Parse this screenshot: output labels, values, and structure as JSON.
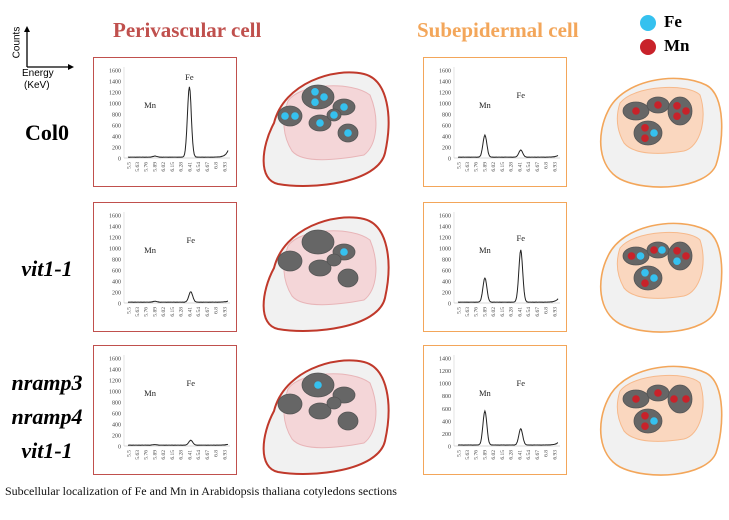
{
  "headers": {
    "perivascular": "Perivascular cell",
    "subepidermal": "Subepidermal cell"
  },
  "axis_key": {
    "y": "Counts",
    "x": "Energy",
    "x_unit": "(KeV)"
  },
  "legend": [
    {
      "label": "Fe",
      "color": "#35c1ef"
    },
    {
      "label": "Mn",
      "color": "#c8222a"
    }
  ],
  "colors": {
    "perivascular": "#c0392b",
    "subepidermal": "#f3a65a",
    "peri_inner": "#f4d6d8",
    "sub_inner": "#fad7bf",
    "organelle": "#666666",
    "cell_fill": "#f1f1f1"
  },
  "rows": [
    {
      "label_lines": [
        "Col0"
      ]
    },
    {
      "label_lines": [
        "vit1-1"
      ]
    },
    {
      "label_lines": [
        "nramp3",
        "nramp4",
        "vit1-1"
      ]
    }
  ],
  "caption": "Subcellular localization of Fe and Mn in Arabidopsis thaliana cotyledons sections",
  "cells": [
    {
      "type": "perivascular",
      "organelles": [
        [
          "Fe",
          "Fe"
        ],
        [
          "Fe",
          "Fe",
          "Fe"
        ],
        [
          "Fe"
        ],
        [
          "Fe"
        ],
        [
          "Fe"
        ],
        [
          "Fe"
        ]
      ]
    },
    {
      "type": "subepidermal",
      "organelles": [
        [
          "Mn"
        ],
        [
          "Mn"
        ],
        [
          "Mn",
          "Mn",
          "Mn"
        ],
        [
          "Fe",
          "Mn",
          "Mn"
        ]
      ]
    },
    {
      "type": "perivascular",
      "organelles": [
        [],
        [],
        [
          "Fe"
        ],
        [],
        [],
        []
      ]
    },
    {
      "type": "subepidermal",
      "organelles": [
        [
          "Fe",
          "Mn"
        ],
        [
          "Fe",
          "Mn"
        ],
        [
          "Mn",
          "Fe",
          "Mn"
        ],
        [
          "Fe",
          "Mn",
          "Fe"
        ]
      ]
    },
    {
      "type": "perivascular",
      "organelles": [
        [],
        [
          "Fe"
        ],
        [],
        [],
        [],
        []
      ]
    },
    {
      "type": "subepidermal",
      "organelles": [
        [
          "Mn"
        ],
        [
          "Mn"
        ],
        [
          "Mn",
          "Mn"
        ],
        [
          "Fe",
          "Mn",
          "Mn"
        ]
      ]
    }
  ],
  "chart_data": [
    {
      "type": "line",
      "panel": "Col0 perivascular",
      "xlabel": "Energy (KeV)",
      "ylabel": "Counts",
      "x_ticks": [
        "5.5",
        "5.63",
        "5.76",
        "5.89",
        "6.02",
        "6.15",
        "6.28",
        "6.41",
        "6.54",
        "6.67",
        "6.8",
        "6.93"
      ],
      "ylim": [
        0,
        1600
      ],
      "y_ticks": [
        "0",
        "200",
        "400",
        "600",
        "800",
        "1000",
        "1200",
        "1400",
        "1600"
      ],
      "peaks": {
        "Mn": {
          "x": 5.89,
          "y": 20
        },
        "Fe": {
          "x": 6.39,
          "y": 1280
        }
      },
      "tail": 120,
      "labels": {
        "Mn": "Mn",
        "Fe": "Fe"
      }
    },
    {
      "type": "line",
      "panel": "Col0 subepidermal",
      "xlabel": "Energy (KeV)",
      "ylabel": "Counts",
      "x_ticks": [
        "5.5",
        "5.63",
        "5.76",
        "5.89",
        "6.02",
        "6.15",
        "6.28",
        "6.41",
        "6.54",
        "6.67",
        "6.8",
        "6.93"
      ],
      "ylim": [
        0,
        1600
      ],
      "y_ticks": [
        "0",
        "200",
        "400",
        "600",
        "800",
        "1000",
        "1200",
        "1400",
        "1600"
      ],
      "peaks": {
        "Mn": {
          "x": 5.89,
          "y": 400
        },
        "Fe": {
          "x": 6.41,
          "y": 130
        }
      },
      "tail": 30,
      "labels": {
        "Mn": "Mn",
        "Fe": "Fe"
      }
    },
    {
      "type": "line",
      "panel": "vit1-1 perivascular",
      "xlabel": "Energy (KeV)",
      "ylabel": "Counts",
      "x_ticks": [
        "5.5",
        "5.63",
        "5.76",
        "5.89",
        "6.02",
        "6.15",
        "6.28",
        "6.41",
        "6.54",
        "6.67",
        "6.8",
        "6.93"
      ],
      "ylim": [
        0,
        1600
      ],
      "y_ticks": [
        "0",
        "200",
        "400",
        "600",
        "800",
        "1000",
        "1200",
        "1400",
        "1600"
      ],
      "peaks": {
        "Mn": {
          "x": 5.89,
          "y": 15
        },
        "Fe": {
          "x": 6.41,
          "y": 190
        }
      },
      "tail": 20,
      "labels": {
        "Mn": "Mn",
        "Fe": "Fe"
      }
    },
    {
      "type": "line",
      "panel": "vit1-1 subepidermal",
      "xlabel": "Energy (KeV)",
      "ylabel": "Counts",
      "x_ticks": [
        "5.5",
        "5.63",
        "5.76",
        "5.89",
        "6.02",
        "6.15",
        "6.28",
        "6.41",
        "6.54",
        "6.67",
        "6.8",
        "6.93"
      ],
      "ylim": [
        0,
        1600
      ],
      "y_ticks": [
        "0",
        "200",
        "400",
        "600",
        "800",
        "1000",
        "1200",
        "1400",
        "1600"
      ],
      "peaks": {
        "Mn": {
          "x": 5.89,
          "y": 440
        },
        "Fe": {
          "x": 6.41,
          "y": 950
        }
      },
      "tail": 60,
      "labels": {
        "Mn": "Mn",
        "Fe": "Fe"
      }
    },
    {
      "type": "line",
      "panel": "nramp3 nramp4 vit1-1 perivascular",
      "xlabel": "Energy (KeV)",
      "ylabel": "Counts",
      "x_ticks": [
        "5.5",
        "5.63",
        "5.76",
        "5.89",
        "6.02",
        "6.15",
        "6.28",
        "6.41",
        "6.54",
        "6.67",
        "6.8",
        "6.93"
      ],
      "ylim": [
        0,
        1600
      ],
      "y_ticks": [
        "0",
        "200",
        "400",
        "600",
        "800",
        "1000",
        "1200",
        "1400",
        "1600"
      ],
      "peaks": {
        "Mn": {
          "x": 5.89,
          "y": 10
        },
        "Fe": {
          "x": 6.41,
          "y": 90
        }
      },
      "tail": 15,
      "labels": {
        "Mn": "Mn",
        "Fe": "Fe"
      }
    },
    {
      "type": "line",
      "panel": "nramp3 nramp4 vit1-1 subepidermal",
      "xlabel": "Energy (KeV)",
      "ylabel": "Counts",
      "x_ticks": [
        "5.5",
        "5.63",
        "5.76",
        "5.89",
        "6.02",
        "6.15",
        "6.28",
        "6.41",
        "6.54",
        "6.67",
        "6.8",
        "6.93"
      ],
      "ylim": [
        0,
        1400
      ],
      "y_ticks": [
        "0",
        "200",
        "400",
        "600",
        "800",
        "1000",
        "1200",
        "1400"
      ],
      "peaks": {
        "Mn": {
          "x": 5.89,
          "y": 540
        },
        "Fe": {
          "x": 6.41,
          "y": 260
        }
      },
      "tail": 40,
      "labels": {
        "Mn": "Mn",
        "Fe": "Fe"
      }
    }
  ]
}
